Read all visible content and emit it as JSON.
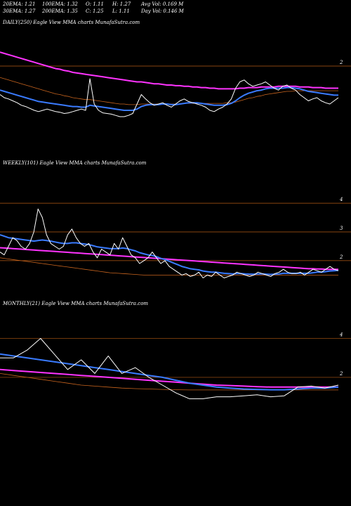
{
  "stats": {
    "ema20": "20EMA: 1.21",
    "ema100": "100EMA: 1.32",
    "open": "O: 1.11",
    "high": "H: 1.27",
    "avg_vol": "Avg Vol: 0.169 M",
    "ema30": "30EMA: 1.27",
    "ema200": "200EMA: 1.35",
    "close": "C: 1.25",
    "low": "L: 1.11",
    "day_vol": "Day Vol: 0.146  M"
  },
  "colors": {
    "background": "#000000",
    "price": "#ffffff",
    "ema_blue": "#3a7bff",
    "ema_magenta": "#ff33ff",
    "ema_orange": "#c8641e",
    "level_line": "#b45a14"
  },
  "chart_data": [
    {
      "type": "line",
      "title": "DAILY(250) Eagle   View  MMA charts MunafaSutra.com",
      "yticks": [
        {
          "value": 2,
          "label": "2"
        }
      ],
      "ylim": [
        0.6,
        2.6
      ],
      "x_count": 250,
      "series": [
        {
          "role": "price",
          "color": "#ffffff",
          "values": [
            1.55,
            1.5,
            1.48,
            1.45,
            1.42,
            1.38,
            1.36,
            1.33,
            1.3,
            1.28,
            1.3,
            1.32,
            1.3,
            1.28,
            1.27,
            1.25,
            1.26,
            1.28,
            1.3,
            1.32,
            1.3,
            1.8,
            1.4,
            1.3,
            1.26,
            1.25,
            1.24,
            1.22,
            1.2,
            1.2,
            1.22,
            1.25,
            1.4,
            1.55,
            1.48,
            1.42,
            1.38,
            1.4,
            1.42,
            1.38,
            1.35,
            1.4,
            1.45,
            1.48,
            1.44,
            1.42,
            1.4,
            1.38,
            1.35,
            1.3,
            1.28,
            1.32,
            1.35,
            1.4,
            1.48,
            1.65,
            1.75,
            1.78,
            1.72,
            1.68,
            1.7,
            1.72,
            1.75,
            1.7,
            1.65,
            1.62,
            1.68,
            1.7,
            1.65,
            1.62,
            1.55,
            1.5,
            1.45,
            1.48,
            1.5,
            1.45,
            1.42,
            1.4,
            1.45,
            1.5
          ]
        },
        {
          "role": "ema_fast",
          "color": "#3a7bff",
          "values": [
            1.62,
            1.6,
            1.58,
            1.56,
            1.54,
            1.52,
            1.5,
            1.48,
            1.46,
            1.44,
            1.43,
            1.42,
            1.41,
            1.4,
            1.39,
            1.38,
            1.37,
            1.36,
            1.36,
            1.35,
            1.35,
            1.38,
            1.37,
            1.36,
            1.35,
            1.34,
            1.33,
            1.32,
            1.31,
            1.3,
            1.3,
            1.3,
            1.32,
            1.36,
            1.38,
            1.39,
            1.39,
            1.39,
            1.4,
            1.4,
            1.39,
            1.39,
            1.4,
            1.41,
            1.42,
            1.42,
            1.42,
            1.41,
            1.4,
            1.39,
            1.38,
            1.38,
            1.38,
            1.39,
            1.41,
            1.45,
            1.5,
            1.54,
            1.57,
            1.59,
            1.61,
            1.62,
            1.64,
            1.65,
            1.65,
            1.65,
            1.65,
            1.66,
            1.66,
            1.65,
            1.64,
            1.62,
            1.6,
            1.59,
            1.58,
            1.57,
            1.56,
            1.55,
            1.54,
            1.54
          ]
        },
        {
          "role": "ema_mid",
          "color": "#ff33ff",
          "values": [
            2.22,
            2.2,
            2.18,
            2.16,
            2.14,
            2.12,
            2.1,
            2.08,
            2.06,
            2.04,
            2.02,
            2.0,
            1.98,
            1.96,
            1.95,
            1.93,
            1.92,
            1.9,
            1.89,
            1.88,
            1.87,
            1.86,
            1.85,
            1.84,
            1.83,
            1.82,
            1.81,
            1.8,
            1.79,
            1.78,
            1.77,
            1.76,
            1.75,
            1.75,
            1.74,
            1.73,
            1.72,
            1.72,
            1.71,
            1.7,
            1.7,
            1.69,
            1.69,
            1.68,
            1.68,
            1.67,
            1.67,
            1.66,
            1.66,
            1.65,
            1.65,
            1.64,
            1.64,
            1.64,
            1.64,
            1.64,
            1.65,
            1.65,
            1.66,
            1.66,
            1.66,
            1.67,
            1.67,
            1.67,
            1.67,
            1.68,
            1.68,
            1.68,
            1.68,
            1.68,
            1.67,
            1.67,
            1.67,
            1.66,
            1.66,
            1.66,
            1.65,
            1.65,
            1.65,
            1.65
          ]
        },
        {
          "role": "ema_slow",
          "color": "#c8641e",
          "values": [
            1.82,
            1.8,
            1.78,
            1.76,
            1.74,
            1.72,
            1.7,
            1.68,
            1.66,
            1.64,
            1.62,
            1.6,
            1.58,
            1.56,
            1.55,
            1.53,
            1.52,
            1.5,
            1.49,
            1.48,
            1.47,
            1.47,
            1.46,
            1.45,
            1.44,
            1.43,
            1.42,
            1.41,
            1.4,
            1.4,
            1.39,
            1.39,
            1.39,
            1.4,
            1.4,
            1.4,
            1.4,
            1.4,
            1.4,
            1.4,
            1.4,
            1.4,
            1.4,
            1.41,
            1.41,
            1.41,
            1.41,
            1.41,
            1.41,
            1.41,
            1.41,
            1.41,
            1.41,
            1.42,
            1.42,
            1.43,
            1.45,
            1.47,
            1.49,
            1.5,
            1.52,
            1.53,
            1.55,
            1.56,
            1.57,
            1.58,
            1.59,
            1.6,
            1.6,
            1.61,
            1.61,
            1.61,
            1.61,
            1.61,
            1.61,
            1.61,
            1.61,
            1.61,
            1.61,
            1.61
          ]
        }
      ]
    },
    {
      "type": "line",
      "title": "WEEKLY(101) Eagle   View  MMA charts MunafaSutra.com",
      "yticks": [
        {
          "value": 4,
          "label": "4"
        },
        {
          "value": 3,
          "label": "3"
        },
        {
          "value": 2,
          "label": "2"
        }
      ],
      "ylim": [
        0.8,
        5.2
      ],
      "x_count": 101,
      "series": [
        {
          "role": "price",
          "color": "#ffffff",
          "values": [
            2.3,
            2.2,
            2.5,
            2.8,
            2.7,
            2.5,
            2.4,
            2.6,
            3.0,
            3.8,
            3.5,
            2.9,
            2.6,
            2.5,
            2.4,
            2.5,
            2.9,
            3.1,
            2.8,
            2.6,
            2.5,
            2.6,
            2.3,
            2.1,
            2.4,
            2.3,
            2.2,
            2.6,
            2.4,
            2.8,
            2.5,
            2.2,
            2.1,
            1.9,
            2.0,
            2.1,
            2.3,
            2.1,
            1.9,
            2.0,
            1.8,
            1.7,
            1.6,
            1.5,
            1.55,
            1.45,
            1.5,
            1.6,
            1.4,
            1.5,
            1.45,
            1.6,
            1.5,
            1.4,
            1.45,
            1.5,
            1.6,
            1.55,
            1.5,
            1.45,
            1.5,
            1.6,
            1.55,
            1.5,
            1.45,
            1.55,
            1.6,
            1.7,
            1.6,
            1.55,
            1.55,
            1.6,
            1.5,
            1.6,
            1.7,
            1.65,
            1.6,
            1.7,
            1.8,
            1.7,
            1.65
          ]
        },
        {
          "role": "ema_fast",
          "color": "#3a7bff",
          "values": [
            2.9,
            2.85,
            2.8,
            2.78,
            2.76,
            2.74,
            2.72,
            2.7,
            2.68,
            2.7,
            2.72,
            2.7,
            2.68,
            2.65,
            2.62,
            2.6,
            2.6,
            2.62,
            2.62,
            2.6,
            2.58,
            2.56,
            2.52,
            2.48,
            2.46,
            2.44,
            2.42,
            2.42,
            2.42,
            2.44,
            2.42,
            2.38,
            2.34,
            2.28,
            2.24,
            2.2,
            2.18,
            2.14,
            2.08,
            2.04,
            1.98,
            1.92,
            1.86,
            1.8,
            1.76,
            1.72,
            1.7,
            1.68,
            1.64,
            1.62,
            1.6,
            1.6,
            1.58,
            1.56,
            1.55,
            1.54,
            1.55,
            1.55,
            1.54,
            1.53,
            1.53,
            1.54,
            1.54,
            1.53,
            1.52,
            1.53,
            1.54,
            1.56,
            1.56,
            1.56,
            1.56,
            1.56,
            1.56,
            1.56,
            1.58,
            1.6,
            1.6,
            1.62,
            1.64,
            1.65,
            1.66
          ]
        },
        {
          "role": "ema_mid",
          "color": "#ff33ff",
          "values": [
            2.45,
            2.44,
            2.43,
            2.42,
            2.41,
            2.4,
            2.39,
            2.38,
            2.37,
            2.36,
            2.35,
            2.34,
            2.33,
            2.32,
            2.31,
            2.3,
            2.29,
            2.28,
            2.27,
            2.26,
            2.25,
            2.24,
            2.23,
            2.22,
            2.21,
            2.2,
            2.19,
            2.18,
            2.17,
            2.16,
            2.15,
            2.14,
            2.13,
            2.12,
            2.11,
            2.1,
            2.09,
            2.08,
            2.07,
            2.06,
            2.05,
            2.04,
            2.03,
            2.02,
            2.01,
            2.0,
            1.99,
            1.98,
            1.97,
            1.96,
            1.95,
            1.94,
            1.93,
            1.92,
            1.91,
            1.9,
            1.89,
            1.88,
            1.87,
            1.86,
            1.85,
            1.84,
            1.83,
            1.82,
            1.81,
            1.8,
            1.79,
            1.78,
            1.77,
            1.76,
            1.75,
            1.74,
            1.73,
            1.72,
            1.72,
            1.71,
            1.71,
            1.7,
            1.7,
            1.7,
            1.7
          ]
        },
        {
          "role": "ema_slow",
          "color": "#c8641e",
          "values": [
            2.1,
            2.08,
            2.06,
            2.04,
            2.02,
            2.0,
            1.98,
            1.96,
            1.94,
            1.92,
            1.9,
            1.88,
            1.86,
            1.84,
            1.82,
            1.8,
            1.78,
            1.76,
            1.74,
            1.72,
            1.7,
            1.68,
            1.66,
            1.64,
            1.62,
            1.6,
            1.58,
            1.57,
            1.56,
            1.55,
            1.54,
            1.53,
            1.52,
            1.51,
            1.5,
            1.5,
            1.5,
            1.5,
            1.5,
            1.5,
            1.5,
            1.5,
            1.5,
            1.5,
            1.5,
            1.5,
            1.5,
            1.5,
            1.5,
            1.5,
            1.5,
            1.5,
            1.5,
            1.5,
            1.5,
            1.5,
            1.5,
            1.5,
            1.5,
            1.5,
            1.5,
            1.5,
            1.5,
            1.5,
            1.5,
            1.5,
            1.5,
            1.5,
            1.5,
            1.5,
            1.5,
            1.5,
            1.5,
            1.5,
            1.5,
            1.5,
            1.5,
            1.5,
            1.5,
            1.5,
            1.5
          ]
        }
      ]
    },
    {
      "type": "line",
      "title": "MONTHLY(21) Eagle   View  MMA charts MunafaSutra.com",
      "yticks": [
        {
          "value": 4,
          "label": "4"
        },
        {
          "value": 2,
          "label": "2"
        }
      ],
      "ylim": [
        -1.0,
        5.5
      ],
      "x_count": 21,
      "series": [
        {
          "role": "price",
          "color": "#ffffff",
          "values": [
            3.0,
            3.0,
            3.4,
            4.0,
            3.2,
            2.4,
            2.9,
            2.2,
            3.1,
            2.2,
            2.5,
            2.0,
            1.6,
            1.2,
            0.9,
            0.9,
            1.0,
            1.0,
            1.05,
            1.1,
            1.0,
            1.05,
            1.5,
            1.55,
            1.45,
            1.6
          ]
        },
        {
          "role": "ema_fast",
          "color": "#3a7bff",
          "values": [
            3.2,
            3.1,
            3.0,
            2.9,
            2.8,
            2.7,
            2.6,
            2.5,
            2.4,
            2.3,
            2.2,
            2.1,
            2.0,
            1.85,
            1.7,
            1.6,
            1.5,
            1.45,
            1.4,
            1.38,
            1.36,
            1.36,
            1.4,
            1.45,
            1.45,
            1.5
          ]
        },
        {
          "role": "ema_mid",
          "color": "#ff33ff",
          "values": [
            2.4,
            2.35,
            2.3,
            2.25,
            2.2,
            2.15,
            2.1,
            2.05,
            2.0,
            1.95,
            1.9,
            1.85,
            1.8,
            1.75,
            1.7,
            1.65,
            1.6,
            1.58,
            1.55,
            1.52,
            1.5,
            1.5,
            1.5,
            1.5,
            1.5,
            1.5
          ]
        },
        {
          "role": "ema_slow",
          "color": "#c8641e",
          "values": [
            2.2,
            2.1,
            2.0,
            1.9,
            1.8,
            1.7,
            1.6,
            1.55,
            1.5,
            1.45,
            1.42,
            1.4,
            1.38,
            1.36,
            1.35,
            1.35,
            1.35,
            1.35,
            1.35,
            1.35,
            1.35,
            1.35,
            1.35,
            1.35,
            1.35,
            1.35
          ]
        }
      ]
    }
  ]
}
